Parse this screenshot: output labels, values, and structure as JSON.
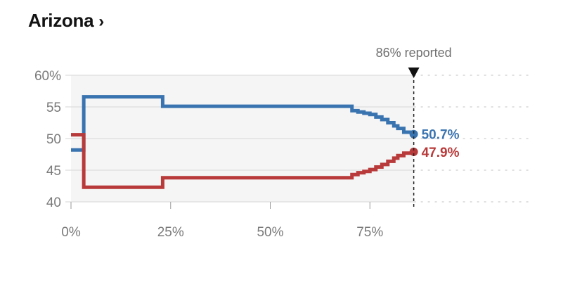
{
  "header": {
    "title": "Arizona",
    "chevron": "›"
  },
  "colors": {
    "dem": "#3a74b0",
    "rep": "#b93a3a",
    "panel": "#f5f5f5",
    "grid": "#d6d6d6"
  },
  "chart_data": {
    "type": "line",
    "title": "Arizona",
    "x_unit": "% reported",
    "xlim": [
      0,
      100
    ],
    "ylim": [
      40,
      60
    ],
    "x_ticks": [
      0,
      25,
      50,
      75
    ],
    "x_tick_labels": [
      "0%",
      "25%",
      "50%",
      "75%"
    ],
    "y_ticks": [
      40,
      45,
      50,
      55,
      60
    ],
    "y_tick_labels": [
      "40",
      "45",
      "50",
      "55",
      "60%"
    ],
    "reported": 86,
    "reported_label": "86% reported",
    "grid": true,
    "series": [
      {
        "key": "dem",
        "step": true,
        "end_label": "50.7%",
        "points": [
          [
            0,
            48.2
          ],
          [
            3.2,
            48.2
          ],
          [
            3.2,
            56.6
          ],
          [
            23,
            56.6
          ],
          [
            23,
            55.1
          ],
          [
            69.5,
            55.1
          ],
          [
            70.5,
            54.4
          ],
          [
            72,
            54.2
          ],
          [
            73.5,
            54.0
          ],
          [
            75,
            53.8
          ],
          [
            76.5,
            53.4
          ],
          [
            78,
            53.0
          ],
          [
            79.5,
            52.5
          ],
          [
            81,
            52.0
          ],
          [
            82,
            51.6
          ],
          [
            83.5,
            51.0
          ],
          [
            86,
            50.7
          ]
        ]
      },
      {
        "key": "rep",
        "step": true,
        "end_label": "47.9%",
        "points": [
          [
            0,
            50.6
          ],
          [
            3.2,
            50.6
          ],
          [
            3.2,
            42.3
          ],
          [
            23,
            42.3
          ],
          [
            23,
            43.8
          ],
          [
            69.5,
            43.8
          ],
          [
            70.5,
            44.3
          ],
          [
            72,
            44.6
          ],
          [
            73.5,
            44.8
          ],
          [
            75,
            45.1
          ],
          [
            76.5,
            45.5
          ],
          [
            78,
            45.9
          ],
          [
            79.5,
            46.4
          ],
          [
            81,
            46.9
          ],
          [
            82,
            47.3
          ],
          [
            83.5,
            47.7
          ],
          [
            86,
            47.9
          ]
        ]
      }
    ]
  }
}
